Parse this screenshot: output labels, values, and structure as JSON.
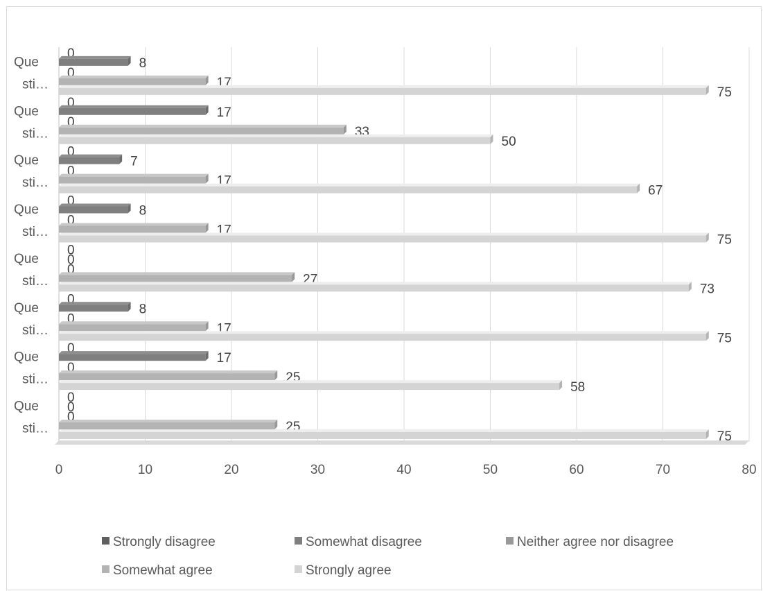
{
  "chart_data": {
    "type": "bar",
    "orientation": "horizontal",
    "style": "3d",
    "title": "",
    "xlabel": "",
    "ylabel": "",
    "xlim": [
      0,
      80
    ],
    "x_ticks": [
      0,
      10,
      20,
      30,
      40,
      50,
      60,
      70,
      80
    ],
    "grid": true,
    "legend_position": "bottom",
    "categories": [
      "Que sti…",
      "Que sti…",
      "Que sti…",
      "Que sti…",
      "Que sti…",
      "Que sti…",
      "Que sti…",
      "Que sti…"
    ],
    "category_lines": [
      "Que",
      "sti…"
    ],
    "series": [
      {
        "name": "Strongly disagree",
        "color": "#5f5f5f",
        "values": [
          0,
          0,
          0,
          0,
          0,
          0,
          0,
          0
        ]
      },
      {
        "name": "Somewhat disagree",
        "color": "#7f7f7f",
        "values": [
          0,
          17,
          8,
          0,
          8,
          7,
          17,
          8
        ]
      },
      {
        "name": "Neither agree nor disagree",
        "color": "#999999",
        "values": [
          0,
          0,
          0,
          0,
          0,
          0,
          0,
          0
        ]
      },
      {
        "name": "Somewhat agree",
        "color": "#b3b3b3",
        "values": [
          25,
          25,
          17,
          27,
          17,
          17,
          33,
          17
        ]
      },
      {
        "name": "Strongly agree",
        "color": "#d4d4d4",
        "values": [
          75,
          58,
          75,
          73,
          75,
          67,
          50,
          75
        ]
      }
    ]
  }
}
